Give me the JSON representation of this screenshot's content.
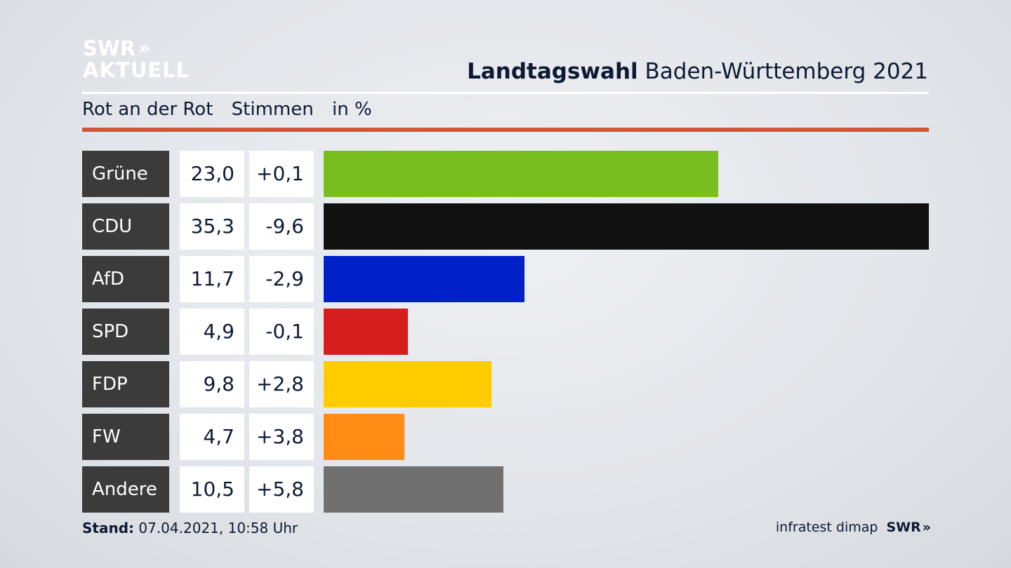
{
  "header": {
    "logo_line1": "SWR",
    "logo_chevron": "»",
    "logo_line2": "AKTUELL",
    "title_bold": "Landtagswahl",
    "title_rest": "Baden-Württemberg 2021"
  },
  "subtitle": {
    "district": "Rot an der Rot",
    "metric": "Stimmen",
    "unit": "in %"
  },
  "footer": {
    "stand_label": "Stand:",
    "stand_value": "07.04.2021, 10:58 Uhr",
    "source": "infratest dimap",
    "brand": "SWR",
    "brand_chevron": "»"
  },
  "colors": {
    "accent_rule": "#d4543a",
    "label_bg": "#3b3b3b"
  },
  "chart_data": {
    "type": "bar",
    "orientation": "horizontal",
    "categories": [
      "Grüne",
      "CDU",
      "AfD",
      "SPD",
      "FDP",
      "FW",
      "Andere"
    ],
    "values": [
      23.0,
      35.3,
      11.7,
      4.9,
      9.8,
      4.7,
      10.5
    ],
    "values_display": [
      "23,0",
      "35,3",
      "11,7",
      "4,9",
      "9,8",
      "4,7",
      "10,5"
    ],
    "changes_display": [
      "+0,1",
      "-9,6",
      "-2,9",
      "-0,1",
      "+2,8",
      "+3,8",
      "+5,8"
    ],
    "colors": [
      "#78be1e",
      "#111111",
      "#0021c8",
      "#d61e1e",
      "#ffcc00",
      "#ff8c14",
      "#707070"
    ],
    "xlim": [
      0,
      35.3
    ],
    "grid": false
  }
}
